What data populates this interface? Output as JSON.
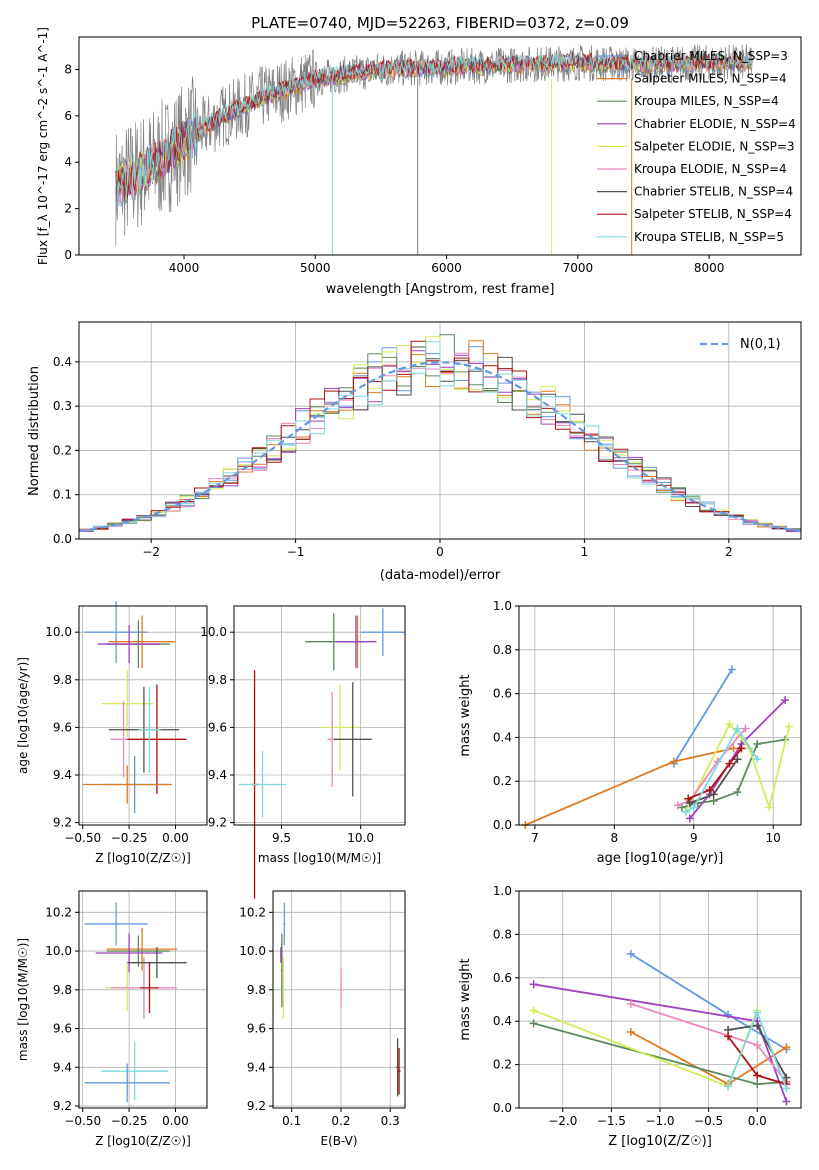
{
  "figure": {
    "title": "PLATE=0740, MJD=52263, FIBERID=0372, z=0.09"
  },
  "colors": {
    "series": [
      "#6699dd",
      "#e07b20",
      "#5c8a5c",
      "#a040c0",
      "#d4ec5a",
      "#e888bb",
      "#505050",
      "#b01010",
      "#80d8e0",
      "#808080"
    ]
  },
  "chart_data": [
    {
      "id": "spectrum",
      "type": "line",
      "xlabel": "wavelength [Angstrom, rest frame]",
      "ylabel": "Flux [f_λ 10^-17 erg cm^-2 s^-1 A^-1]",
      "xlim": [
        3200,
        8700
      ],
      "ylim": [
        0,
        9.4
      ],
      "xticks": [
        4000,
        5000,
        6000,
        7000,
        8000
      ],
      "yticks": [
        0,
        2,
        4,
        6,
        8
      ],
      "grid": false,
      "legend_position": "right",
      "observed_continuum": {
        "x": [
          3500,
          3800,
          4000,
          4300,
          4600,
          5000,
          5500,
          6000,
          6500,
          7000,
          7500,
          8000,
          8300
        ],
        "y": [
          3.0,
          4.0,
          4.9,
          6.0,
          6.8,
          7.6,
          8.0,
          8.1,
          8.2,
          8.3,
          8.2,
          8.3,
          8.3
        ]
      },
      "series": [
        {
          "name": "Chabrier MILES, N_SSP=3"
        },
        {
          "name": "Salpeter MILES, N_SSP=4"
        },
        {
          "name": "Kroupa MILES, N_SSP=4"
        },
        {
          "name": "Chabrier ELODIE, N_SSP=4"
        },
        {
          "name": "Salpeter ELODIE, N_SSP=3"
        },
        {
          "name": "Kroupa ELODIE, N_SSP=4"
        },
        {
          "name": "Chabrier STELIB, N_SSP=4"
        },
        {
          "name": "Salpeter STELIB, N_SSP=4"
        },
        {
          "name": "Kroupa STELIB, N_SSP=5"
        }
      ]
    },
    {
      "id": "residuals",
      "type": "bar",
      "xlabel": "(data-model)/error",
      "ylabel": "Normed distribution",
      "xlim": [
        -2.5,
        2.5
      ],
      "ylim": [
        0,
        0.49
      ],
      "xticks": [
        -2,
        -1,
        0,
        1,
        2
      ],
      "yticks": [
        0.0,
        0.1,
        0.2,
        0.3,
        0.4
      ],
      "grid": true,
      "bin_width": 0.1,
      "legend": [
        {
          "name": "N(0,1)",
          "style": "dashed"
        }
      ],
      "legend_position": "top-right"
    },
    {
      "id": "age-vs-Z",
      "type": "scatter",
      "xlabel": "Z [log10(Z/Z☉)]",
      "ylabel": "age  [log10(age/yr)]",
      "xlim": [
        -0.52,
        0.17
      ],
      "ylim": [
        9.19,
        10.11
      ],
      "xticks": [
        -0.5,
        -0.25,
        0.0
      ],
      "yticks": [
        9.2,
        9.4,
        9.6,
        9.8,
        10.0
      ],
      "grid": true,
      "points": [
        {
          "x": -0.32,
          "y": 10.0,
          "xerr": 0.17,
          "yerr": 0.13
        },
        {
          "x": -0.18,
          "y": 9.96,
          "xerr": 0.18,
          "yerr": 0.11
        },
        {
          "x": -0.2,
          "y": 9.95,
          "xerr": 0.17,
          "yerr": 0.1
        },
        {
          "x": -0.25,
          "y": 9.95,
          "xerr": 0.17,
          "yerr": 0.08
        },
        {
          "x": -0.26,
          "y": 9.7,
          "xerr": 0.14,
          "yerr": 0.14
        },
        {
          "x": -0.28,
          "y": 9.55,
          "xerr": 0.07,
          "yerr": 0.16
        },
        {
          "x": -0.17,
          "y": 9.59,
          "xerr": 0.19,
          "yerr": 0.18
        },
        {
          "x": -0.1,
          "y": 9.55,
          "xerr": 0.16,
          "yerr": 0.23
        },
        {
          "x": -0.14,
          "y": 9.59,
          "xerr": 0.06,
          "yerr": 0.18
        },
        {
          "x": -0.22,
          "y": 9.36,
          "xerr": 0.18,
          "yerr": 0.12
        },
        {
          "x": -0.26,
          "y": 9.36,
          "xerr": 0.24,
          "yerr": 0.08
        }
      ]
    },
    {
      "id": "age-vs-mass",
      "type": "scatter",
      "xlabel": "mass [log10(M/M☉)]",
      "ylabel": "",
      "xlim": [
        9.2,
        10.28
      ],
      "ylim": [
        9.19,
        10.11
      ],
      "xticks": [
        9.5,
        10.0
      ],
      "yticks": [
        9.2,
        9.4,
        9.6,
        9.8,
        10.0
      ],
      "grid": true,
      "points": [
        {
          "x": 10.14,
          "y": 10.0,
          "xerr": 0.14,
          "yerr": 0.1
        },
        {
          "x": 9.98,
          "y": 9.96,
          "xerr": 0.06,
          "yerr": 0.11
        },
        {
          "x": 9.83,
          "y": 9.96,
          "xerr": 0.18,
          "yerr": 0.12
        },
        {
          "x": 9.97,
          "y": 9.96,
          "xerr": 0.13,
          "yerr": 0.11
        },
        {
          "x": 9.87,
          "y": 9.6,
          "xerr": 0.12,
          "yerr": 0.18
        },
        {
          "x": 9.82,
          "y": 9.55,
          "xerr": 0.03,
          "yerr": 0.2
        },
        {
          "x": 9.95,
          "y": 9.55,
          "xerr": 0.12,
          "yerr": 0.24
        },
        {
          "x": 9.33,
          "y": 9.36,
          "xerr": 0.03,
          "yerr": 0.48
        },
        {
          "x": 9.38,
          "y": 9.36,
          "xerr": 0.15,
          "yerr": 0.14
        }
      ]
    },
    {
      "id": "weight-vs-age",
      "type": "line",
      "xlabel": "age  [log10(age/yr)]",
      "ylabel": "mass weight",
      "xlim": [
        6.8,
        10.35
      ],
      "ylim": [
        0,
        1.0
      ],
      "xticks": [
        7,
        8,
        9,
        10
      ],
      "yticks": [
        0.0,
        0.2,
        0.4,
        0.6,
        0.8,
        1.0
      ],
      "grid": true,
      "series": [
        {
          "x": [
            8.75,
            9.48
          ],
          "y": [
            0.28,
            0.71
          ]
        },
        {
          "x": [
            6.88,
            8.75,
            9.5
          ],
          "y": [
            0.0,
            0.29,
            0.35
          ]
        },
        {
          "x": [
            8.85,
            9.05,
            9.25,
            9.55,
            9.8,
            10.15
          ],
          "y": [
            0.08,
            0.1,
            0.11,
            0.15,
            0.37,
            0.39
          ]
        },
        {
          "x": [
            8.95,
            9.2,
            9.6,
            10.15
          ],
          "y": [
            0.03,
            0.14,
            0.37,
            0.57
          ]
        },
        {
          "x": [
            8.9,
            9.45,
            9.7,
            9.95,
            10.2
          ],
          "y": [
            0.06,
            0.46,
            0.35,
            0.08,
            0.45
          ]
        },
        {
          "x": [
            8.8,
            8.95,
            9.3,
            9.65
          ],
          "y": [
            0.09,
            0.11,
            0.29,
            0.44
          ]
        },
        {
          "x": [
            8.95,
            9.25,
            9.55
          ],
          "y": [
            0.1,
            0.14,
            0.3
          ]
        },
        {
          "x": [
            8.93,
            9.2,
            9.45,
            9.6
          ],
          "y": [
            0.12,
            0.16,
            0.28,
            0.35
          ]
        },
        {
          "x": [
            8.9,
            9.0,
            9.55,
            9.8
          ],
          "y": [
            0.06,
            0.08,
            0.44,
            0.3
          ]
        }
      ]
    },
    {
      "id": "mass-vs-Z",
      "type": "scatter",
      "xlabel": "Z [log10(Z/Z☉)]",
      "ylabel": "mass [log10(M/M☉)]",
      "xlim": [
        -0.52,
        0.17
      ],
      "ylim": [
        9.19,
        10.31
      ],
      "xticks": [
        -0.5,
        -0.25,
        0.0
      ],
      "yticks": [
        9.2,
        9.4,
        9.6,
        9.8,
        10.0,
        10.2
      ],
      "grid": true,
      "points": [
        {
          "x": -0.32,
          "y": 10.14,
          "xerr": 0.17,
          "yerr": 0.11
        },
        {
          "x": -0.18,
          "y": 10.01,
          "xerr": 0.19,
          "yerr": 0.11
        },
        {
          "x": -0.2,
          "y": 10.0,
          "xerr": 0.17,
          "yerr": 0.08
        },
        {
          "x": -0.25,
          "y": 9.99,
          "xerr": 0.18,
          "yerr": 0.1
        },
        {
          "x": -0.26,
          "y": 9.81,
          "xerr": 0.12,
          "yerr": 0.12
        },
        {
          "x": -0.17,
          "y": 9.81,
          "xerr": 0.18,
          "yerr": 0.16
        },
        {
          "x": -0.1,
          "y": 9.94,
          "xerr": 0.16,
          "yerr": 0.08
        },
        {
          "x": -0.14,
          "y": 9.81,
          "xerr": 0.05,
          "yerr": 0.13
        },
        {
          "x": -0.22,
          "y": 9.38,
          "xerr": 0.18,
          "yerr": 0.15
        },
        {
          "x": -0.26,
          "y": 9.32,
          "xerr": 0.23,
          "yerr": 0.1
        }
      ]
    },
    {
      "id": "mass-vs-ebv",
      "type": "scatter",
      "xlabel": "E(B-V)",
      "ylabel": "",
      "xlim": [
        0.062,
        0.33
      ],
      "ylim": [
        9.19,
        10.31
      ],
      "xticks": [
        0.1,
        0.2,
        0.3
      ],
      "yticks": [
        9.2,
        9.4,
        9.6,
        9.8,
        10.0,
        10.2
      ],
      "grid": true,
      "points": [
        {
          "x": 0.085,
          "y": 10.14,
          "xerr": 0.002,
          "yerr": 0.11
        },
        {
          "x": 0.08,
          "y": 10.0,
          "xerr": 0.002,
          "yerr": 0.06
        },
        {
          "x": 0.08,
          "y": 9.9,
          "xerr": 0.002,
          "yerr": 0.19
        },
        {
          "x": 0.078,
          "y": 9.98,
          "xerr": 0.002,
          "yerr": 0.04
        },
        {
          "x": 0.083,
          "y": 9.81,
          "xerr": 0.002,
          "yerr": 0.16
        },
        {
          "x": 0.2,
          "y": 9.81,
          "xerr": 0.002,
          "yerr": 0.1
        },
        {
          "x": 0.315,
          "y": 9.4,
          "xerr": 0.003,
          "yerr": 0.15
        },
        {
          "x": 0.318,
          "y": 9.38,
          "xerr": 0.003,
          "yerr": 0.12
        }
      ]
    },
    {
      "id": "weight-vs-Z",
      "type": "line",
      "xlabel": "Z [log10(Z/Z☉)]",
      "ylabel": "mass weight",
      "xlim": [
        -2.45,
        0.45
      ],
      "ylim": [
        0,
        1.0
      ],
      "xticks": [
        -2.0,
        -1.5,
        -1.0,
        -0.5,
        0.0
      ],
      "yticks": [
        0.0,
        0.2,
        0.4,
        0.6,
        0.8,
        1.0
      ],
      "grid": true,
      "series": [
        {
          "x": [
            -1.3,
            -0.3,
            0.3
          ],
          "y": [
            0.71,
            0.43,
            0.27
          ]
        },
        {
          "x": [
            -1.3,
            -0.3,
            0.3
          ],
          "y": [
            0.35,
            0.11,
            0.28
          ]
        },
        {
          "x": [
            -2.3,
            0.0,
            0.3
          ],
          "y": [
            0.39,
            0.11,
            0.12
          ]
        },
        {
          "x": [
            -2.3,
            0.0,
            0.3
          ],
          "y": [
            0.57,
            0.4,
            0.03
          ]
        },
        {
          "x": [
            -2.3,
            -0.3,
            0.0
          ],
          "y": [
            0.45,
            0.1,
            0.45
          ]
        },
        {
          "x": [
            -1.3,
            0.0,
            0.3
          ],
          "y": [
            0.48,
            0.29,
            0.12
          ]
        },
        {
          "x": [
            -0.3,
            0.0,
            0.3
          ],
          "y": [
            0.36,
            0.38,
            0.14
          ]
        },
        {
          "x": [
            -0.3,
            0.0,
            0.3
          ],
          "y": [
            0.33,
            0.15,
            0.11
          ]
        },
        {
          "x": [
            -0.3,
            0.0,
            0.3
          ],
          "y": [
            0.1,
            0.44,
            0.09
          ]
        }
      ]
    }
  ]
}
